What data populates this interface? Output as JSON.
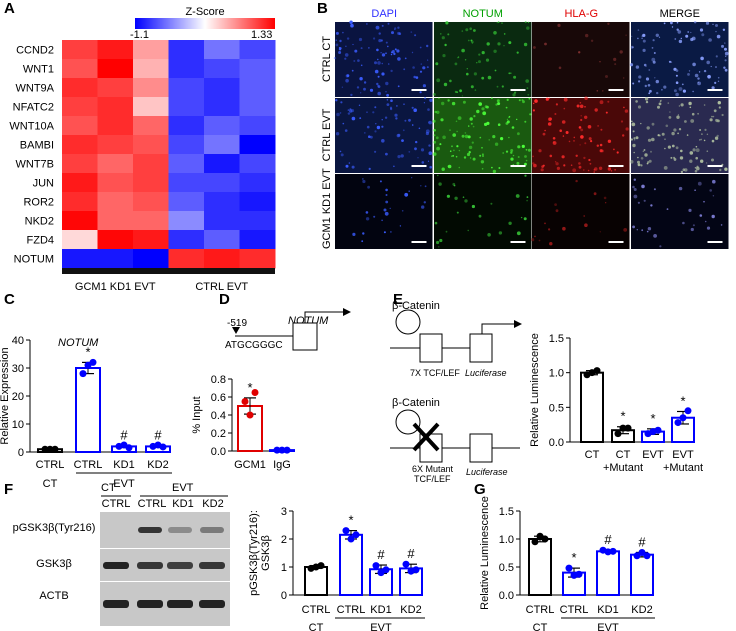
{
  "panels": {
    "A": "A",
    "B": "B",
    "C": "C",
    "D": "D",
    "E": "E",
    "F": "F",
    "G": "G"
  },
  "heatmap": {
    "legend_title": "Z-Score",
    "legend_min": "-1.1",
    "legend_max": "1.33",
    "genes": [
      "CCND2",
      "WNT1",
      "WNT9A",
      "NFATC2",
      "WNT10A",
      "BAMBI",
      "WNT7B",
      "JUN",
      "ROR2",
      "NKD2",
      "FZD4",
      "NOTUM"
    ],
    "group_labels": [
      "GCM1 KD1 EVT",
      "CTRL EVT"
    ],
    "colors": {
      "low": "#0000ff",
      "mid": "#ffffff",
      "high": "#ff0000"
    },
    "z": [
      [
        1.0,
        1.2,
        0.5,
        -0.9,
        -0.6,
        -0.8
      ],
      [
        0.9,
        1.33,
        0.4,
        -0.9,
        -0.8,
        -0.7
      ],
      [
        1.1,
        1.0,
        0.6,
        -0.8,
        -0.9,
        -0.7
      ],
      [
        1.0,
        1.1,
        0.3,
        -0.8,
        -0.9,
        -0.7
      ],
      [
        0.9,
        1.1,
        0.8,
        -0.9,
        -0.7,
        -0.8
      ],
      [
        1.1,
        1.0,
        0.9,
        -0.8,
        -0.6,
        -1.1
      ],
      [
        1.0,
        0.8,
        1.0,
        -0.7,
        -1.0,
        -0.8
      ],
      [
        1.2,
        0.9,
        1.0,
        -0.8,
        -0.8,
        -0.9
      ],
      [
        1.1,
        0.8,
        0.9,
        -0.7,
        -0.9,
        -1.0
      ],
      [
        1.3,
        0.8,
        0.8,
        -0.5,
        -0.9,
        -0.9
      ],
      [
        0.2,
        1.3,
        1.2,
        -0.9,
        -0.7,
        -1.0
      ],
      [
        -1.0,
        -1.0,
        -1.1,
        1.1,
        1.2,
        1.1
      ]
    ]
  },
  "microscopy": {
    "columns": [
      "DAPI",
      "NOTUM",
      "HLA-G",
      "MERGE"
    ],
    "column_colors": [
      "#3030ff",
      "#00a000",
      "#e00000",
      "#000000"
    ],
    "rows": [
      "CTRL CT",
      "CTRL EVT",
      "GCM1 KD1 EVT"
    ]
  },
  "panelC": {
    "gene": "NOTUM",
    "ylabel": "Relative Expression",
    "yticks": [
      "0",
      "10",
      "20",
      "30",
      "40"
    ],
    "categories": [
      "CTRL",
      "CTRL",
      "KD1",
      "KD2"
    ],
    "groups": [
      "CT",
      "EVT"
    ],
    "marks": [
      "",
      "*",
      "#",
      "#"
    ]
  },
  "panelD": {
    "gene": "NOTUM",
    "position": "-519",
    "motif": "ATGCGGGC",
    "ylabel": "% Input",
    "yticks": [
      "0.0",
      "0.2",
      "0.4",
      "0.6",
      "0.8"
    ],
    "categories": [
      "GCM1",
      "IgG"
    ],
    "marks": [
      "*",
      ""
    ]
  },
  "panelE": {
    "b_catenin": "β-Catenin",
    "construct1": "7X TCF/LEF",
    "construct2_line1": "6X Mutant",
    "construct2_line2": "TCF/LEF",
    "reporter": "Luciferase",
    "ylabel": "Relative Luminescence",
    "yticks": [
      "0.0",
      "0.5",
      "1.0",
      "1.5"
    ],
    "cat_line1": [
      "CT",
      "CT",
      "EVT",
      "EVT"
    ],
    "cat_line2": [
      "",
      "+Mutant",
      "",
      "+Mutant"
    ],
    "marks": [
      "",
      "*",
      "*",
      "*"
    ]
  },
  "panelF": {
    "blot_ct": "CT",
    "blot_evt": "EVT",
    "lanes": [
      "CTRL",
      "CTRL",
      "KD1",
      "KD2"
    ],
    "proteins": [
      "pGSK3β(Tyr216)",
      "GSK3β",
      "ACTB"
    ],
    "ylabel_line1": "pGSK3β(Tyr216):",
    "ylabel_line2": "GSK3β",
    "yticks": [
      "0",
      "1",
      "2",
      "3"
    ],
    "categories": [
      "CTRL",
      "CTRL",
      "KD1",
      "KD2"
    ],
    "groups": [
      "CT",
      "EVT"
    ],
    "marks": [
      "",
      "*",
      "#",
      "#"
    ]
  },
  "panelG": {
    "ylabel": "Relative Luminescence",
    "yticks": [
      "0.0",
      "0.5",
      "1.0",
      "1.5"
    ],
    "categories": [
      "CTRL",
      "CTRL",
      "KD1",
      "KD2"
    ],
    "groups": [
      "CT",
      "EVT"
    ],
    "marks": [
      "",
      "*",
      "#",
      "#"
    ]
  },
  "chart_data": [
    {
      "type": "heatmap",
      "title": "Z-Score",
      "rows": [
        "CCND2",
        "WNT1",
        "WNT9A",
        "NFATC2",
        "WNT10A",
        "BAMBI",
        "WNT7B",
        "JUN",
        "ROR2",
        "NKD2",
        "FZD4",
        "NOTUM"
      ],
      "columns": [
        "GCM1 KD1 EVT",
        "GCM1 KD1 EVT",
        "GCM1 KD1 EVT",
        "CTRL EVT",
        "CTRL EVT",
        "CTRL EVT"
      ],
      "zlim": [
        -1.1,
        1.33
      ]
    },
    {
      "type": "bar",
      "title": "NOTUM",
      "ylabel": "Relative Expression",
      "ylim": [
        0,
        40
      ],
      "categories": [
        "CTRL (CT)",
        "CTRL (EVT)",
        "KD1 (EVT)",
        "KD2 (EVT)"
      ],
      "values": [
        1,
        30,
        2,
        2
      ],
      "errors": [
        0.3,
        2,
        0.4,
        0.3
      ],
      "points": [
        [
          1,
          1,
          1
        ],
        [
          28,
          31,
          32
        ],
        [
          2,
          2.5,
          1.5
        ],
        [
          2,
          2.5,
          1.8
        ]
      ],
      "colors": [
        "#000000",
        "#0000ff",
        "#0000ff",
        "#0000ff"
      ]
    },
    {
      "type": "bar",
      "ylabel": "% Input",
      "ylim": [
        0,
        0.8
      ],
      "categories": [
        "GCM1",
        "IgG"
      ],
      "values": [
        0.5,
        0.01
      ],
      "errors": [
        0.09,
        0.005
      ],
      "points": [
        [
          0.55,
          0.4,
          0.65
        ],
        [
          0.01,
          0.01,
          0.01
        ]
      ],
      "colors": [
        "#e00000",
        "#0000ff"
      ]
    },
    {
      "type": "bar",
      "ylabel": "Relative Luminescence",
      "ylim": [
        0,
        1.5
      ],
      "categories": [
        "CT",
        "CT +Mutant",
        "EVT",
        "EVT +Mutant"
      ],
      "values": [
        1.0,
        0.17,
        0.15,
        0.35
      ],
      "errors": [
        0.03,
        0.05,
        0.04,
        0.09
      ],
      "points": [
        [
          0.97,
          1.0,
          1.03
        ],
        [
          0.12,
          0.2,
          0.2
        ],
        [
          0.12,
          0.15,
          0.17
        ],
        [
          0.28,
          0.35,
          0.45
        ]
      ],
      "colors": [
        "#000000",
        "#000000",
        "#0000ff",
        "#0000ff"
      ]
    },
    {
      "type": "bar",
      "ylabel": "pGSK3β(Tyr216): GSK3β",
      "ylim": [
        0,
        3
      ],
      "categories": [
        "CTRL (CT)",
        "CTRL (EVT)",
        "KD1 (EVT)",
        "KD2 (EVT)"
      ],
      "values": [
        1.0,
        2.15,
        0.92,
        0.95
      ],
      "errors": [
        0.05,
        0.15,
        0.15,
        0.15
      ],
      "points": [
        [
          0.95,
          1.0,
          1.05
        ],
        [
          2.3,
          2.0,
          2.15
        ],
        [
          1.05,
          0.8,
          0.9
        ],
        [
          1.1,
          0.85,
          0.9
        ]
      ],
      "colors": [
        "#000000",
        "#0000ff",
        "#0000ff",
        "#0000ff"
      ]
    },
    {
      "type": "bar",
      "ylabel": "Relative Luminescence",
      "ylim": [
        0,
        1.5
      ],
      "categories": [
        "CTRL (CT)",
        "CTRL (EVT)",
        "KD1 (EVT)",
        "KD2 (EVT)"
      ],
      "values": [
        1.0,
        0.4,
        0.78,
        0.72
      ],
      "errors": [
        0.05,
        0.08,
        0.02,
        0.04
      ],
      "points": [
        [
          0.95,
          1.05,
          1.0
        ],
        [
          0.48,
          0.35,
          0.37
        ],
        [
          0.8,
          0.77,
          0.78
        ],
        [
          0.7,
          0.76,
          0.7
        ]
      ],
      "colors": [
        "#000000",
        "#0000ff",
        "#0000ff",
        "#0000ff"
      ]
    }
  ]
}
